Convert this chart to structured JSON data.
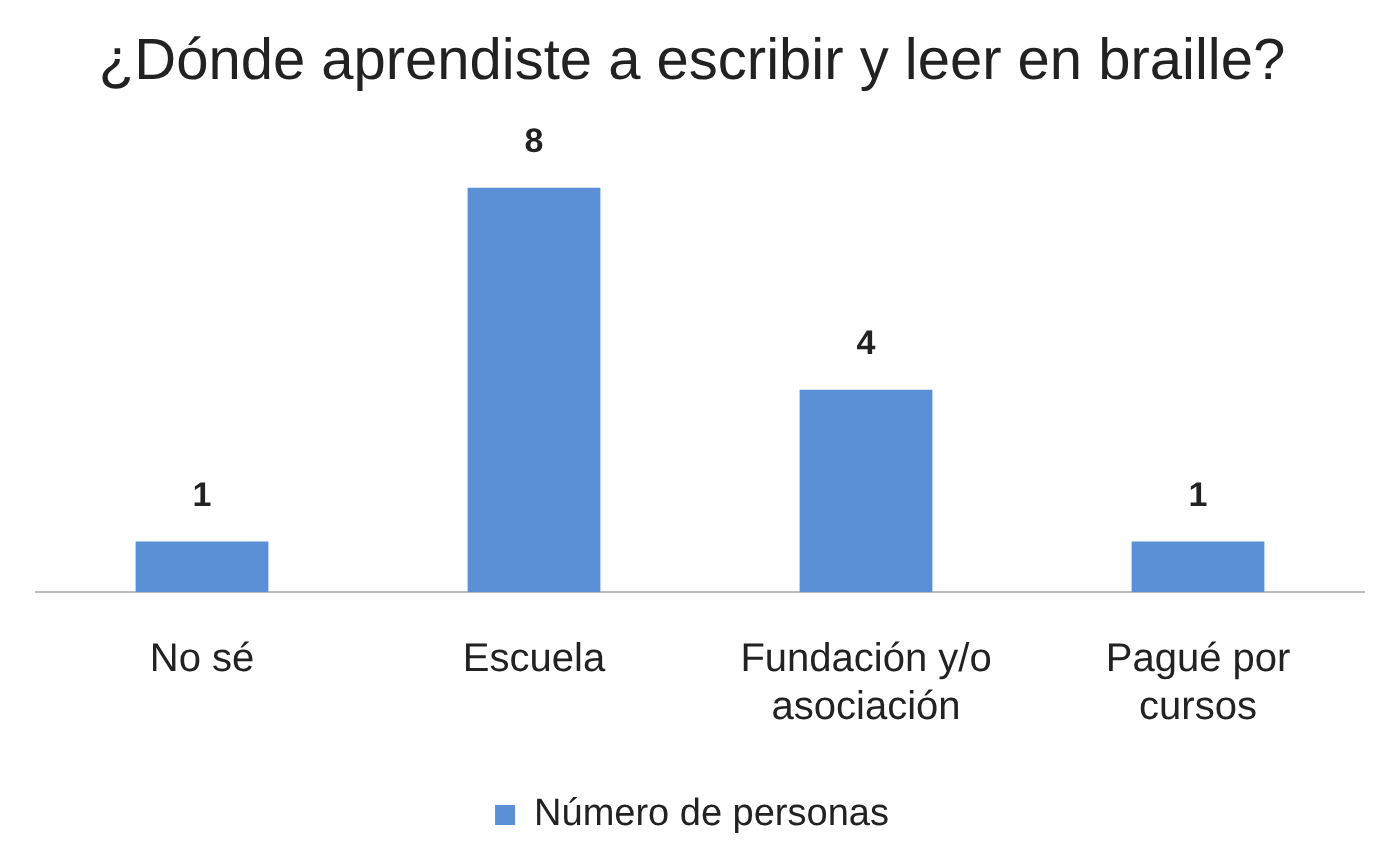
{
  "chart_data": {
    "type": "bar",
    "title": "¿Dónde aprendiste a escribir y leer en braille?",
    "categories": [
      "No sé",
      "Escuela",
      "Fundación y/o asociación",
      "Pagué por cursos"
    ],
    "series": [
      {
        "name": "Número de personas",
        "color": "#5b8fd6",
        "values": [
          1,
          8,
          4,
          1
        ]
      }
    ],
    "data_labels": true,
    "legend": "bottom",
    "grid": false
  }
}
